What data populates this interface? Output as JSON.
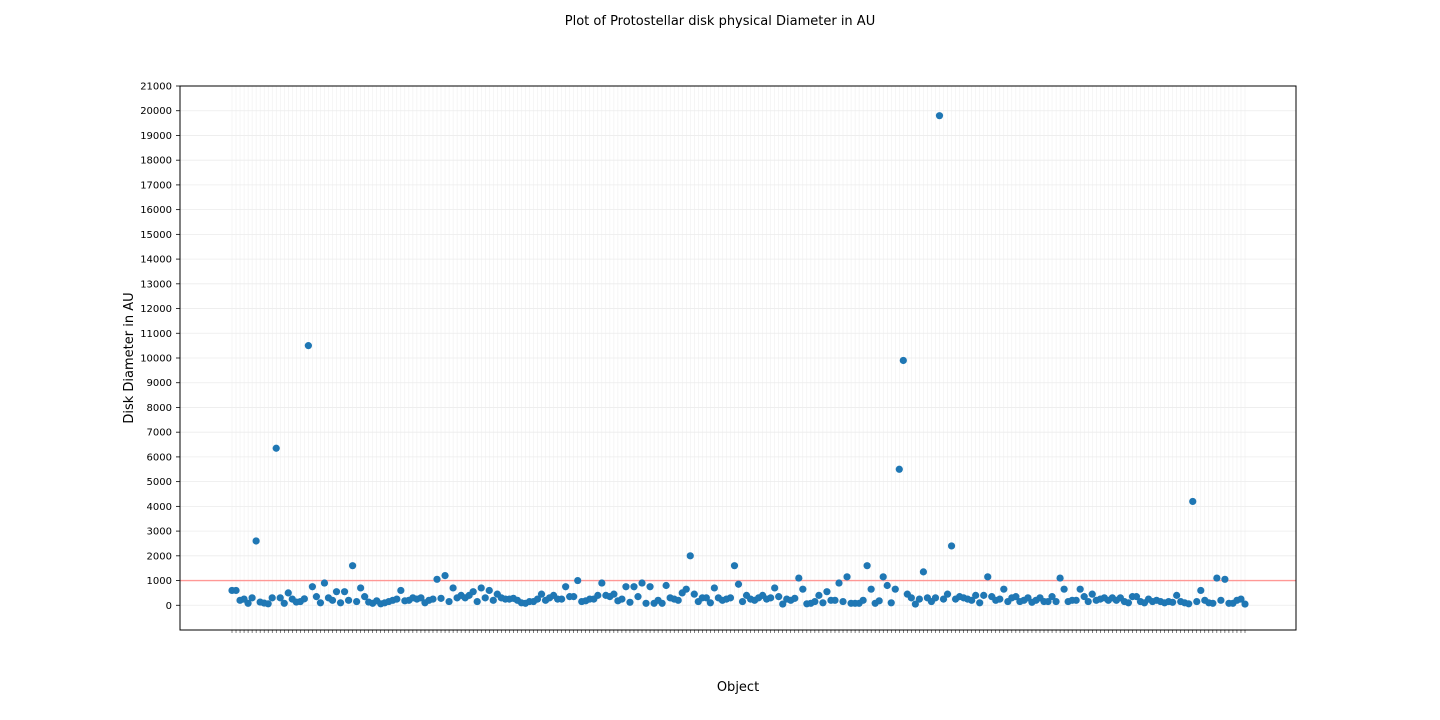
{
  "chart_data": {
    "type": "scatter",
    "title": "Plot of Protostellar disk physical Diameter in AU",
    "xlabel": "Object",
    "ylabel": "Disk Diameter in AU",
    "ylim": [
      -1000,
      21000
    ],
    "yticks": [
      0,
      1000,
      2000,
      3000,
      4000,
      5000,
      6000,
      7000,
      8000,
      9000,
      10000,
      11000,
      12000,
      13000,
      14000,
      15000,
      16000,
      17000,
      18000,
      19000,
      20000,
      21000
    ],
    "grid": true,
    "reference_line": {
      "y": 1000,
      "color": "#ff9896"
    },
    "point_color": "#1f77b4",
    "series": [
      {
        "values": [
          600,
          600,
          200,
          250,
          80,
          300,
          2600,
          130,
          90,
          60,
          300,
          6350,
          300,
          80,
          500,
          250,
          130,
          150,
          260,
          10500,
          750,
          350,
          100,
          900,
          300,
          200,
          550,
          100,
          550,
          200,
          1600,
          150,
          700,
          350,
          130,
          80,
          180,
          60,
          100,
          150,
          200,
          250,
          600,
          180,
          200,
          300,
          250,
          300,
          100,
          200,
          250,
          1050,
          280,
          1200,
          150,
          700,
          300,
          400,
          300,
          400,
          550,
          150,
          700,
          300,
          600,
          200,
          450,
          300,
          250,
          250,
          280,
          200,
          100,
          80,
          150,
          150,
          250,
          450,
          200,
          300,
          400,
          250,
          250,
          750,
          350,
          350,
          1000,
          150,
          180,
          250,
          250,
          400,
          900,
          400,
          350,
          450,
          180,
          250,
          750,
          120,
          750,
          350,
          900,
          80,
          750,
          80,
          200,
          80,
          800,
          300,
          250,
          200,
          500,
          650,
          2000,
          450,
          150,
          300,
          300,
          100,
          700,
          300,
          200,
          250,
          300,
          1600,
          850,
          150,
          400,
          250,
          200,
          300,
          400,
          250,
          300,
          700,
          350,
          50,
          250,
          200,
          280,
          1100,
          650,
          60,
          80,
          150,
          400,
          100,
          550,
          200,
          200,
          900,
          150,
          1150,
          80,
          80,
          80,
          200,
          1600,
          650,
          80,
          180,
          1150,
          800,
          100,
          650,
          5500,
          9900,
          450,
          300,
          50,
          250,
          1350,
          300,
          150,
          300,
          19800,
          250,
          450,
          2400,
          250,
          350,
          300,
          250,
          200,
          400,
          100,
          400,
          1150,
          350,
          200,
          250,
          650,
          150,
          300,
          350,
          150,
          200,
          300,
          120,
          200,
          300,
          150,
          150,
          350,
          150,
          1100,
          650,
          150,
          200,
          200,
          650,
          350,
          150,
          450,
          200,
          250,
          300,
          200,
          300,
          200,
          300,
          150,
          100,
          350,
          350,
          150,
          100,
          250,
          150,
          200,
          150,
          100,
          150,
          120,
          400,
          150,
          100,
          60,
          4200,
          150,
          600,
          200,
          100,
          80,
          1100,
          200,
          1050,
          80,
          80,
          200,
          250,
          50
        ]
      }
    ]
  }
}
